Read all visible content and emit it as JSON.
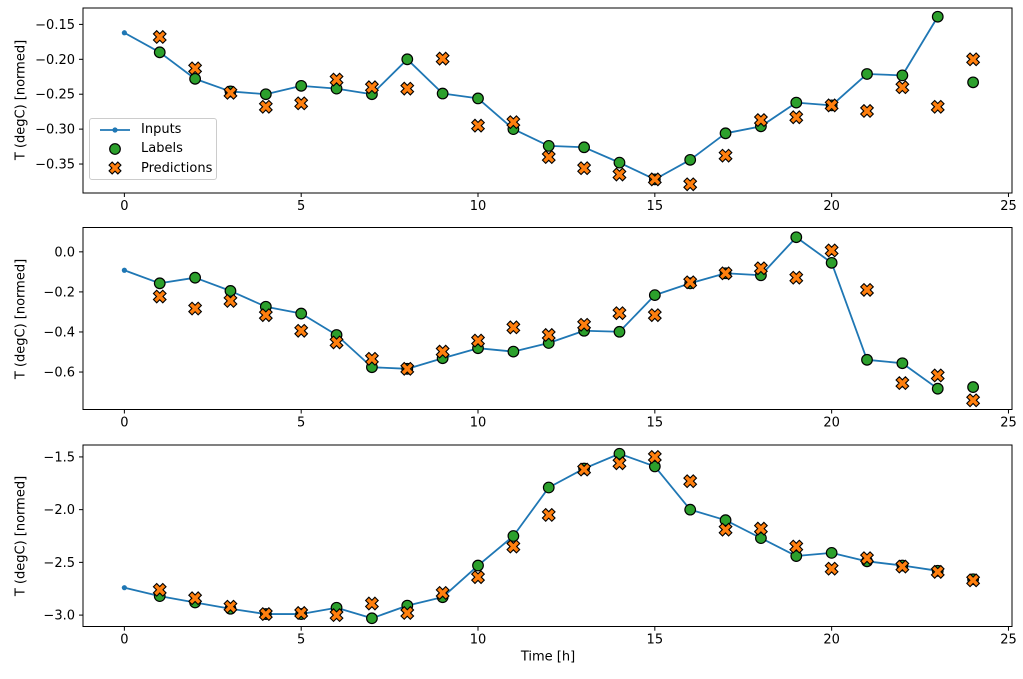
{
  "figure": {
    "xlabel": "Time [h]",
    "ylabel": "T (degC) [normed]",
    "background": "#ffffff",
    "colors": {
      "inputs": "#1f77b4",
      "labels": "#2ca02c",
      "predictions": "#ff7f0e",
      "marker_edge": "#000000",
      "axis": "#000000",
      "text": "#000000",
      "legend_border": "#cccccc"
    },
    "legend": {
      "items": [
        {
          "label": "Inputs",
          "marker": "line-dot",
          "color": "#1f77b4"
        },
        {
          "label": "Labels",
          "marker": "circle",
          "color": "#2ca02c"
        },
        {
          "label": "Predictions",
          "marker": "x",
          "color": "#ff7f0e"
        }
      ]
    }
  },
  "chart_data": [
    {
      "type": "line",
      "title": "",
      "ylabel": "T (degC) [normed]",
      "xlim": [
        -1.17,
        25.1
      ],
      "ylim": [
        -0.3915,
        -0.1265
      ],
      "grid": false,
      "xticks": {
        "values": [
          0,
          5,
          10,
          15,
          20,
          25
        ],
        "labels": [
          "0",
          "5",
          "10",
          "15",
          "20",
          "25"
        ]
      },
      "yticks": {
        "values": [
          -0.15,
          -0.2,
          -0.25,
          -0.3,
          -0.35
        ],
        "labels": [
          "−0.15",
          "−0.20",
          "−0.25",
          "−0.30",
          "−0.35"
        ]
      },
      "series": [
        {
          "name": "Inputs",
          "style": "line-dot",
          "x": [
            0,
            1,
            2,
            3,
            4,
            5,
            6,
            7,
            8,
            9,
            10,
            11,
            12,
            13,
            14,
            15,
            16,
            17,
            18,
            19,
            20,
            21,
            22,
            23
          ],
          "y": [
            -0.162,
            -0.19,
            -0.228,
            -0.246,
            -0.25,
            -0.238,
            -0.242,
            -0.25,
            -0.2,
            -0.249,
            -0.256,
            -0.3,
            -0.324,
            -0.326,
            -0.348,
            -0.372,
            -0.344,
            -0.306,
            -0.296,
            -0.262,
            -0.266,
            -0.221,
            -0.223,
            -0.139
          ]
        },
        {
          "name": "Labels",
          "style": "circle",
          "x": [
            1,
            2,
            3,
            4,
            5,
            6,
            7,
            8,
            9,
            10,
            11,
            12,
            13,
            14,
            15,
            16,
            17,
            18,
            19,
            20,
            21,
            22,
            23,
            24
          ],
          "y": [
            -0.19,
            -0.228,
            -0.246,
            -0.25,
            -0.238,
            -0.242,
            -0.25,
            -0.2,
            -0.249,
            -0.256,
            -0.3,
            -0.324,
            -0.326,
            -0.348,
            -0.372,
            -0.344,
            -0.306,
            -0.296,
            -0.262,
            -0.266,
            -0.221,
            -0.223,
            -0.139,
            -0.233
          ]
        },
        {
          "name": "Predictions",
          "style": "x",
          "x": [
            1,
            2,
            3,
            4,
            5,
            6,
            7,
            8,
            9,
            10,
            11,
            12,
            13,
            14,
            15,
            16,
            17,
            18,
            19,
            20,
            21,
            22,
            23,
            24
          ],
          "y": [
            -0.168,
            -0.213,
            -0.248,
            -0.268,
            -0.263,
            -0.229,
            -0.24,
            -0.242,
            -0.199,
            -0.295,
            -0.29,
            -0.34,
            -0.356,
            -0.365,
            -0.372,
            -0.379,
            -0.338,
            -0.287,
            -0.283,
            -0.266,
            -0.274,
            -0.24,
            -0.268,
            -0.2
          ]
        }
      ]
    },
    {
      "type": "line",
      "title": "",
      "ylabel": "T (degC) [normed]",
      "xlim": [
        -1.17,
        25.1
      ],
      "ylim": [
        -0.787,
        0.1205
      ],
      "grid": false,
      "xticks": {
        "values": [
          0,
          5,
          10,
          15,
          20,
          25
        ],
        "labels": [
          "0",
          "5",
          "10",
          "15",
          "20",
          "25"
        ]
      },
      "yticks": {
        "values": [
          0.0,
          -0.2,
          -0.4,
          -0.6
        ],
        "labels": [
          "0.0",
          "−0.2",
          "−0.4",
          "−0.6"
        ]
      },
      "series": [
        {
          "name": "Inputs",
          "style": "line-dot",
          "x": [
            0,
            1,
            2,
            3,
            4,
            5,
            6,
            7,
            8,
            9,
            10,
            11,
            12,
            13,
            14,
            15,
            16,
            17,
            18,
            19,
            20,
            21,
            22,
            23
          ],
          "y": [
            -0.092,
            -0.157,
            -0.129,
            -0.195,
            -0.274,
            -0.308,
            -0.415,
            -0.576,
            -0.584,
            -0.531,
            -0.481,
            -0.498,
            -0.455,
            -0.394,
            -0.399,
            -0.216,
            -0.157,
            -0.107,
            -0.117,
            0.073,
            -0.055,
            -0.539,
            -0.556,
            -0.683
          ]
        },
        {
          "name": "Labels",
          "style": "circle",
          "x": [
            1,
            2,
            3,
            4,
            5,
            6,
            7,
            8,
            9,
            10,
            11,
            12,
            13,
            14,
            15,
            16,
            17,
            18,
            19,
            20,
            21,
            22,
            23,
            24
          ],
          "y": [
            -0.157,
            -0.129,
            -0.195,
            -0.274,
            -0.308,
            -0.415,
            -0.576,
            -0.584,
            -0.531,
            -0.481,
            -0.498,
            -0.455,
            -0.394,
            -0.399,
            -0.216,
            -0.157,
            -0.107,
            -0.117,
            0.073,
            -0.055,
            -0.539,
            -0.556,
            -0.683,
            -0.675
          ]
        },
        {
          "name": "Predictions",
          "style": "x",
          "x": [
            1,
            2,
            3,
            4,
            5,
            6,
            7,
            8,
            9,
            10,
            11,
            12,
            13,
            14,
            15,
            16,
            17,
            18,
            19,
            20,
            21,
            22,
            23,
            24
          ],
          "y": [
            -0.223,
            -0.283,
            -0.245,
            -0.316,
            -0.394,
            -0.452,
            -0.534,
            -0.584,
            -0.498,
            -0.443,
            -0.377,
            -0.415,
            -0.364,
            -0.306,
            -0.316,
            -0.152,
            -0.107,
            -0.082,
            -0.129,
            0.007,
            -0.19,
            -0.655,
            -0.617,
            -0.741
          ]
        }
      ]
    },
    {
      "type": "line",
      "title": "",
      "ylabel": "T (degC) [normed]",
      "xlim": [
        -1.17,
        25.1
      ],
      "ylim": [
        -3.11,
        -1.387
      ],
      "grid": false,
      "xticks": {
        "values": [
          0,
          5,
          10,
          15,
          20,
          25
        ],
        "labels": [
          "0",
          "5",
          "10",
          "15",
          "20",
          "25"
        ]
      },
      "yticks": {
        "values": [
          -1.5,
          -2.0,
          -2.5,
          -3.0
        ],
        "labels": [
          "−1.5",
          "−2.0",
          "−2.5",
          "−3.0"
        ]
      },
      "series": [
        {
          "name": "Inputs",
          "style": "line-dot",
          "x": [
            0,
            1,
            2,
            3,
            4,
            5,
            6,
            7,
            8,
            9,
            10,
            11,
            12,
            13,
            14,
            15,
            16,
            17,
            18,
            19,
            20,
            21,
            22,
            23
          ],
          "y": [
            -2.74,
            -2.82,
            -2.88,
            -2.94,
            -2.99,
            -2.99,
            -2.93,
            -3.03,
            -2.91,
            -2.83,
            -2.53,
            -2.25,
            -1.79,
            -1.61,
            -1.47,
            -1.59,
            -2.0,
            -2.1,
            -2.27,
            -2.44,
            -2.41,
            -2.49,
            -2.53,
            -2.58
          ]
        },
        {
          "name": "Labels",
          "style": "circle",
          "x": [
            1,
            2,
            3,
            4,
            5,
            6,
            7,
            8,
            9,
            10,
            11,
            12,
            13,
            14,
            15,
            16,
            17,
            18,
            19,
            20,
            21,
            22,
            23,
            24
          ],
          "y": [
            -2.82,
            -2.88,
            -2.94,
            -2.99,
            -2.99,
            -2.93,
            -3.03,
            -2.91,
            -2.83,
            -2.53,
            -2.25,
            -1.79,
            -1.61,
            -1.47,
            -1.59,
            -2.0,
            -2.1,
            -2.27,
            -2.44,
            -2.41,
            -2.49,
            -2.53,
            -2.58,
            -2.66
          ]
        },
        {
          "name": "Predictions",
          "style": "x",
          "x": [
            1,
            2,
            3,
            4,
            5,
            6,
            7,
            8,
            9,
            10,
            11,
            12,
            13,
            14,
            15,
            16,
            17,
            18,
            19,
            20,
            21,
            22,
            23,
            24
          ],
          "y": [
            -2.76,
            -2.84,
            -2.92,
            -2.99,
            -2.98,
            -3.0,
            -2.89,
            -2.98,
            -2.79,
            -2.64,
            -2.35,
            -2.05,
            -1.62,
            -1.56,
            -1.5,
            -1.73,
            -2.19,
            -2.18,
            -2.35,
            -2.56,
            -2.46,
            -2.54,
            -2.59,
            -2.67
          ]
        }
      ]
    }
  ]
}
